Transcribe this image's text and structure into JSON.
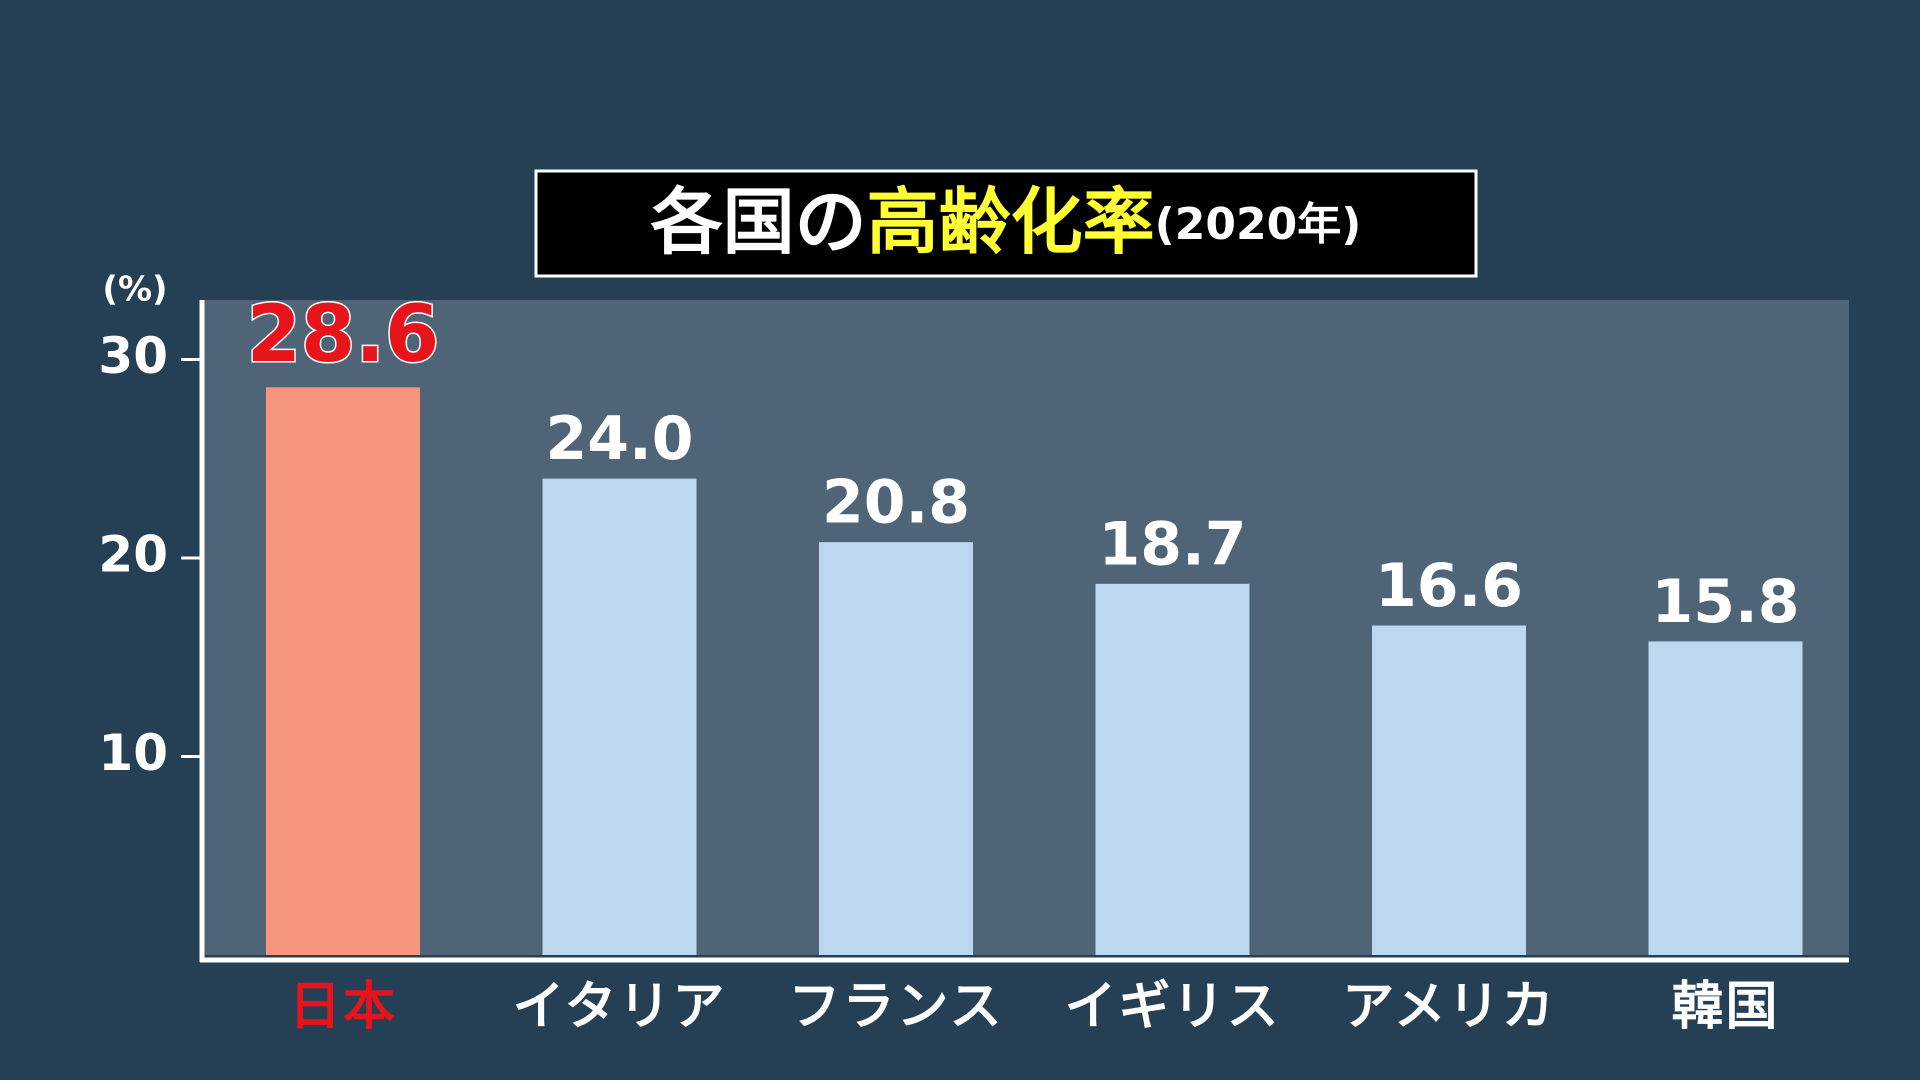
{
  "chart_data": {
    "type": "bar",
    "title_parts": [
      "各国の",
      "高齢化率",
      "(2020年)"
    ],
    "title_colors": [
      "#ffffff",
      "#ffff33",
      "#ffffff"
    ],
    "y_label": "(%)",
    "categories": [
      "日本",
      "イタリア",
      "フランス",
      "イギリス",
      "アメリカ",
      "韓国"
    ],
    "values": [
      28.6,
      24.0,
      20.8,
      18.7,
      16.6,
      15.8
    ],
    "value_labels": [
      "28.6",
      "24.0",
      "20.8",
      "18.7",
      "16.6",
      "15.8"
    ],
    "colors": [
      "#f7967e",
      "#bdd7ee",
      "#bdd7ee",
      "#bdd7ee",
      "#bdd7ee",
      "#bdd7ee"
    ],
    "highlight": 0,
    "highlight_color": "#e8141c",
    "ylim": [
      0,
      33
    ],
    "yticks": [
      10,
      20,
      30
    ]
  }
}
